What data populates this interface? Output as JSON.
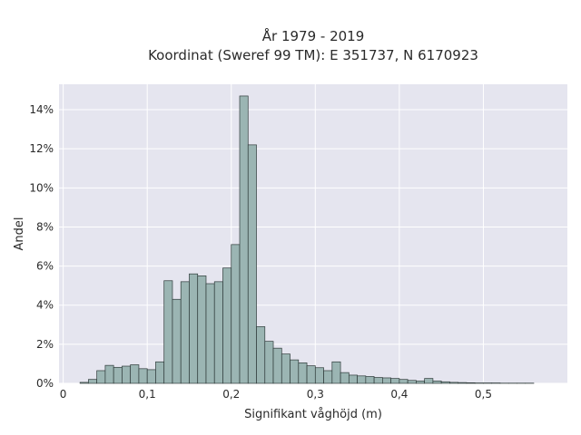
{
  "chart_data": {
    "type": "bar",
    "title_lines": [
      "År 1979 - 2019",
      "Koordinat (Sweref 99 TM): E 351737, N 6170923"
    ],
    "xlabel": "Signifikant våghöjd (m)",
    "ylabel": "Andel",
    "xlim": [
      -0.005,
      0.6
    ],
    "ylim": [
      0,
      15.3
    ],
    "x_ticks": [
      0,
      0.1,
      0.2,
      0.3,
      0.4,
      0.5
    ],
    "x_tick_labels": [
      "0",
      "0,1",
      "0,2",
      "0,3",
      "0,4",
      "0,5"
    ],
    "y_ticks": [
      0,
      2,
      4,
      6,
      8,
      10,
      12,
      14
    ],
    "y_tick_labels": [
      "0%",
      "2%",
      "4%",
      "6%",
      "8%",
      "10%",
      "12%",
      "14%"
    ],
    "grid": true,
    "bar_color": "#9bb5b3",
    "bar_edge_color": "#2f3b3a",
    "bin_width": 0.01,
    "bin_starts": [
      0.02,
      0.03,
      0.04,
      0.05,
      0.06,
      0.07,
      0.08,
      0.09,
      0.1,
      0.11,
      0.12,
      0.13,
      0.14,
      0.15,
      0.16,
      0.17,
      0.18,
      0.19,
      0.2,
      0.21,
      0.22,
      0.23,
      0.24,
      0.25,
      0.26,
      0.27,
      0.28,
      0.29,
      0.3,
      0.31,
      0.32,
      0.33,
      0.34,
      0.35,
      0.36,
      0.37,
      0.38,
      0.39,
      0.4,
      0.41,
      0.42,
      0.43,
      0.44,
      0.45,
      0.46,
      0.47,
      0.48,
      0.49,
      0.5,
      0.51,
      0.52,
      0.53,
      0.54,
      0.55
    ],
    "values": [
      0.05,
      0.2,
      0.65,
      0.92,
      0.82,
      0.88,
      0.95,
      0.75,
      0.7,
      1.1,
      5.25,
      4.3,
      5.2,
      5.6,
      5.5,
      5.1,
      5.2,
      5.9,
      7.1,
      14.7,
      12.2,
      2.9,
      2.15,
      1.8,
      1.5,
      1.2,
      1.05,
      0.9,
      0.8,
      0.65,
      1.1,
      0.55,
      0.42,
      0.38,
      0.35,
      0.3,
      0.28,
      0.25,
      0.2,
      0.15,
      0.12,
      0.25,
      0.12,
      0.08,
      0.05,
      0.04,
      0.03,
      0.02,
      0.02,
      0.02,
      0.01,
      0.01,
      0.01,
      0.01
    ]
  }
}
